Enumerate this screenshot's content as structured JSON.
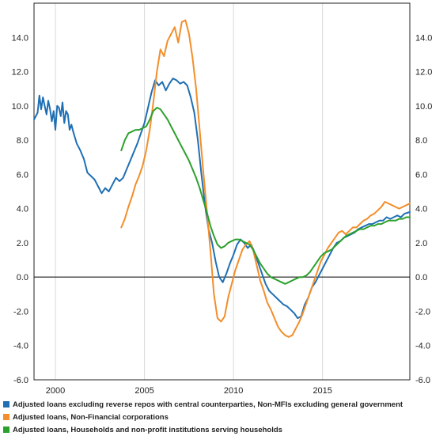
{
  "chart_data": {
    "type": "line",
    "title": "",
    "xlabel": "",
    "ylabel": "",
    "x_ticks": [
      "2000",
      "2005",
      "2010",
      "2015"
    ],
    "xlim": [
      1998.8,
      2019.9
    ],
    "y_ticks": [
      "14.0",
      "12.0",
      "10.0",
      "8.0",
      "6.0",
      "4.0",
      "2.0",
      "0.0",
      "-2.0",
      "-4.0",
      "-6.0"
    ],
    "ylim": [
      -6,
      16
    ],
    "grid": "vertical gridlines at year ticks",
    "legend_placement": "bottom",
    "series": [
      {
        "name": "Adjusted loans excluding reverse repos with central counterparties, Non-MFIs excluding general government",
        "color": "#1f6fb4",
        "x": [
          1998.8,
          1999.0,
          1999.1,
          1999.2,
          1999.3,
          1999.4,
          1999.5,
          1999.6,
          1999.7,
          1999.8,
          1999.9,
          2000.0,
          2000.1,
          2000.2,
          2000.3,
          2000.4,
          2000.5,
          2000.6,
          2000.7,
          2000.8,
          2000.9,
          2001.0,
          2001.2,
          2001.4,
          2001.6,
          2001.8,
          2002.0,
          2002.2,
          2002.4,
          2002.6,
          2002.8,
          2003.0,
          2003.2,
          2003.4,
          2003.6,
          2003.8,
          2004.0,
          2004.2,
          2004.4,
          2004.6,
          2004.8,
          2005.0,
          2005.2,
          2005.4,
          2005.6,
          2005.8,
          2006.0,
          2006.2,
          2006.4,
          2006.6,
          2006.8,
          2007.0,
          2007.2,
          2007.4,
          2007.6,
          2007.8,
          2008.0,
          2008.2,
          2008.4,
          2008.6,
          2008.8,
          2009.0,
          2009.2,
          2009.4,
          2009.6,
          2009.8,
          2010.0,
          2010.2,
          2010.4,
          2010.6,
          2010.8,
          2011.0,
          2011.2,
          2011.4,
          2011.6,
          2011.8,
          2012.0,
          2012.2,
          2012.4,
          2012.6,
          2012.8,
          2013.0,
          2013.2,
          2013.4,
          2013.6,
          2013.8,
          2014.0,
          2014.2,
          2014.4,
          2014.6,
          2014.8,
          2015.0,
          2015.2,
          2015.4,
          2015.6,
          2015.8,
          2016.0,
          2016.2,
          2016.4,
          2016.6,
          2016.8,
          2017.0,
          2017.2,
          2017.4,
          2017.6,
          2017.8,
          2018.0,
          2018.2,
          2018.4,
          2018.6,
          2018.8,
          2019.0,
          2019.2,
          2019.4,
          2019.6,
          2019.9
        ],
        "values": [
          9.2,
          9.6,
          10.6,
          9.8,
          10.5,
          10.0,
          9.5,
          10.3,
          9.8,
          9.1,
          9.7,
          8.6,
          10.0,
          9.9,
          9.4,
          10.2,
          9.0,
          9.7,
          9.5,
          8.6,
          8.9,
          8.5,
          7.8,
          7.4,
          6.9,
          6.1,
          5.9,
          5.7,
          5.3,
          4.9,
          5.2,
          5.0,
          5.4,
          5.8,
          5.6,
          5.8,
          6.3,
          6.8,
          7.3,
          7.8,
          8.4,
          9.0,
          9.9,
          10.8,
          11.5,
          11.2,
          11.4,
          10.9,
          11.3,
          11.6,
          11.5,
          11.3,
          11.4,
          11.2,
          10.5,
          9.6,
          8.0,
          6.0,
          4.2,
          2.8,
          2.0,
          0.9,
          0.0,
          -0.3,
          0.2,
          0.8,
          1.3,
          1.9,
          2.2,
          2.0,
          1.7,
          1.9,
          1.4,
          0.8,
          0.2,
          -0.4,
          -0.8,
          -1.0,
          -1.2,
          -1.4,
          -1.6,
          -1.7,
          -1.9,
          -2.1,
          -2.4,
          -2.3,
          -1.6,
          -1.2,
          -0.6,
          -0.3,
          0.1,
          0.5,
          0.9,
          1.3,
          1.7,
          2.0,
          2.1,
          2.3,
          2.4,
          2.5,
          2.6,
          2.8,
          2.9,
          3.0,
          3.1,
          3.1,
          3.2,
          3.3,
          3.3,
          3.5,
          3.4,
          3.5,
          3.6,
          3.5,
          3.7,
          3.8
        ]
      },
      {
        "name": "Adjusted loans, Non-Financial corporations",
        "color": "#f28e2b",
        "x": [
          2003.7,
          2003.9,
          2004.1,
          2004.3,
          2004.5,
          2004.7,
          2004.9,
          2005.1,
          2005.3,
          2005.5,
          2005.7,
          2005.9,
          2006.1,
          2006.3,
          2006.5,
          2006.7,
          2006.9,
          2007.1,
          2007.3,
          2007.5,
          2007.7,
          2007.9,
          2008.1,
          2008.3,
          2008.5,
          2008.7,
          2008.9,
          2009.1,
          2009.3,
          2009.5,
          2009.7,
          2009.9,
          2010.1,
          2010.3,
          2010.5,
          2010.7,
          2010.9,
          2011.1,
          2011.3,
          2011.5,
          2011.7,
          2011.9,
          2012.1,
          2012.3,
          2012.5,
          2012.7,
          2012.9,
          2013.1,
          2013.3,
          2013.5,
          2013.7,
          2013.9,
          2014.1,
          2014.3,
          2014.5,
          2014.7,
          2014.9,
          2015.1,
          2015.3,
          2015.5,
          2015.7,
          2015.9,
          2016.1,
          2016.3,
          2016.5,
          2016.7,
          2016.9,
          2017.1,
          2017.3,
          2017.5,
          2017.7,
          2017.9,
          2018.1,
          2018.3,
          2018.5,
          2018.7,
          2018.9,
          2019.1,
          2019.3,
          2019.5,
          2019.7,
          2019.9
        ],
        "values": [
          2.9,
          3.4,
          4.1,
          4.7,
          5.4,
          5.9,
          6.5,
          7.4,
          8.6,
          10.2,
          12.0,
          13.3,
          12.9,
          13.8,
          14.2,
          14.6,
          13.7,
          14.9,
          15.0,
          14.2,
          12.8,
          11.0,
          8.6,
          6.2,
          3.9,
          1.6,
          -1.0,
          -2.4,
          -2.6,
          -2.3,
          -1.2,
          -0.4,
          0.4,
          1.0,
          1.6,
          1.9,
          2.1,
          1.6,
          0.7,
          -0.2,
          -0.8,
          -1.5,
          -1.9,
          -2.4,
          -2.9,
          -3.2,
          -3.4,
          -3.5,
          -3.4,
          -3.0,
          -2.6,
          -2.1,
          -1.5,
          -0.9,
          -0.3,
          0.3,
          0.9,
          1.3,
          1.7,
          2.0,
          2.3,
          2.6,
          2.7,
          2.5,
          2.7,
          2.9,
          2.9,
          3.1,
          3.3,
          3.4,
          3.6,
          3.7,
          3.9,
          4.1,
          4.4,
          4.3,
          4.2,
          4.1,
          4.0,
          4.1,
          4.2,
          4.3
        ]
      },
      {
        "name": "Adjusted loans, Households and non-profit institutions serving households",
        "color": "#2ca02c",
        "x": [
          2003.7,
          2003.9,
          2004.1,
          2004.3,
          2004.5,
          2004.7,
          2004.9,
          2005.1,
          2005.3,
          2005.5,
          2005.7,
          2005.9,
          2006.1,
          2006.3,
          2006.5,
          2006.7,
          2006.9,
          2007.1,
          2007.3,
          2007.5,
          2007.7,
          2007.9,
          2008.1,
          2008.3,
          2008.5,
          2008.7,
          2008.9,
          2009.1,
          2009.3,
          2009.5,
          2009.7,
          2009.9,
          2010.1,
          2010.3,
          2010.5,
          2010.7,
          2010.9,
          2011.1,
          2011.3,
          2011.5,
          2011.7,
          2011.9,
          2012.1,
          2012.3,
          2012.5,
          2012.7,
          2012.9,
          2013.1,
          2013.3,
          2013.5,
          2013.7,
          2013.9,
          2014.1,
          2014.3,
          2014.5,
          2014.7,
          2014.9,
          2015.1,
          2015.3,
          2015.5,
          2015.7,
          2015.9,
          2016.1,
          2016.3,
          2016.5,
          2016.7,
          2016.9,
          2017.1,
          2017.3,
          2017.5,
          2017.7,
          2017.9,
          2018.1,
          2018.3,
          2018.5,
          2018.7,
          2018.9,
          2019.1,
          2019.3,
          2019.5,
          2019.7,
          2019.9
        ],
        "values": [
          7.4,
          8.0,
          8.4,
          8.5,
          8.6,
          8.6,
          8.7,
          8.8,
          9.2,
          9.7,
          9.9,
          9.8,
          9.5,
          9.2,
          8.8,
          8.4,
          8.0,
          7.6,
          7.2,
          6.8,
          6.3,
          5.8,
          5.2,
          4.5,
          3.8,
          3.0,
          2.4,
          1.9,
          1.7,
          1.8,
          2.0,
          2.1,
          2.2,
          2.2,
          2.1,
          2.0,
          1.9,
          1.6,
          1.2,
          0.8,
          0.5,
          0.2,
          0.0,
          -0.1,
          -0.2,
          -0.3,
          -0.4,
          -0.3,
          -0.2,
          -0.1,
          0.0,
          0.0,
          0.1,
          0.3,
          0.6,
          0.9,
          1.2,
          1.4,
          1.5,
          1.6,
          1.8,
          2.0,
          2.2,
          2.4,
          2.5,
          2.6,
          2.7,
          2.8,
          2.8,
          2.9,
          3.0,
          3.0,
          3.1,
          3.1,
          3.2,
          3.3,
          3.3,
          3.3,
          3.4,
          3.4,
          3.5,
          3.5
        ]
      }
    ]
  },
  "legend": {
    "items": [
      {
        "label": "Adjusted loans excluding reverse repos with central counterparties, Non-MFIs excluding general government",
        "color": "#1f6fb4"
      },
      {
        "label": "Adjusted loans, Non-Financial corporations",
        "color": "#f28e2b"
      },
      {
        "label": "Adjusted loans, Households and non-profit institutions serving households",
        "color": "#2ca02c"
      }
    ]
  }
}
